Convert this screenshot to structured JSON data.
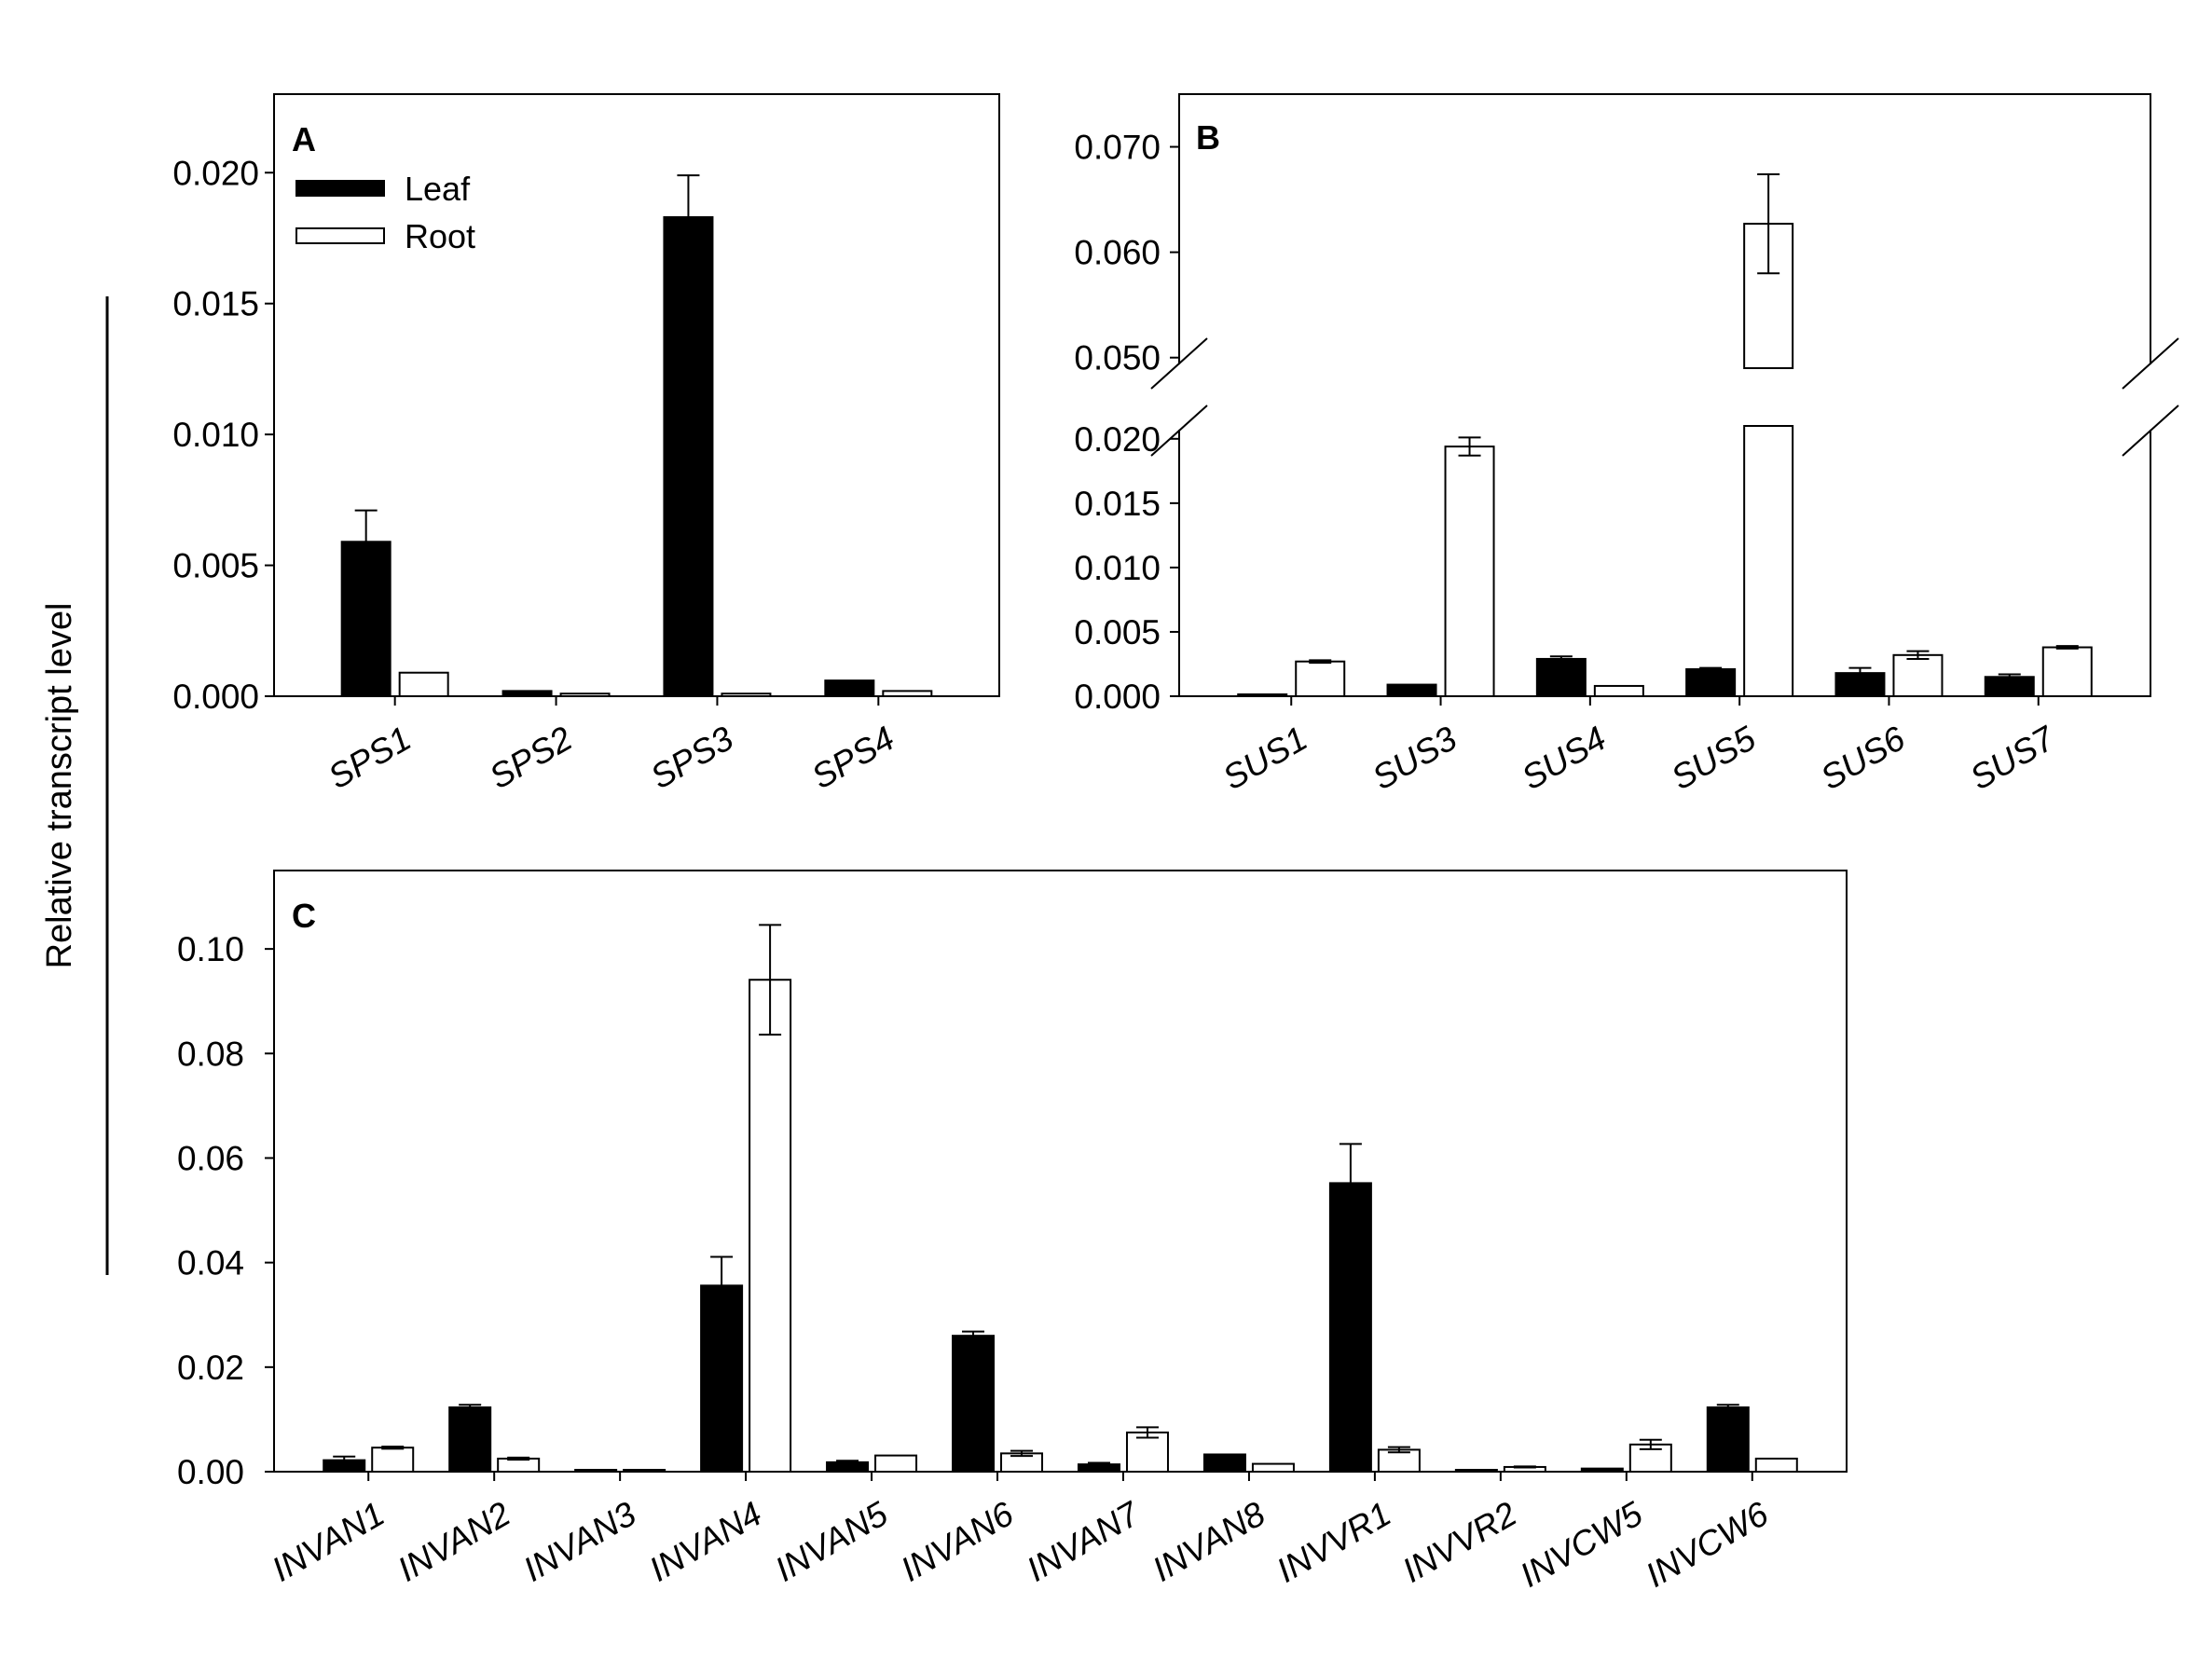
{
  "figure": {
    "ylabel": "Relative transcript level",
    "legend": [
      {
        "label": "Leaf",
        "color": "#000000"
      },
      {
        "label": "Root",
        "color": "#ffffff"
      }
    ]
  },
  "chart_data": [
    {
      "type": "bar",
      "panel": "A",
      "categories": [
        "SPS1",
        "SPS2",
        "SPS3",
        "SPS4"
      ],
      "series": [
        {
          "name": "Leaf",
          "values": [
            0.0059,
            0.0002,
            0.0183,
            0.0006
          ],
          "errors": [
            0.0012,
            0.0,
            0.0016,
            0.0
          ]
        },
        {
          "name": "Root",
          "values": [
            0.0009,
            0.0001,
            0.0001,
            0.0002
          ],
          "errors": [
            0.0,
            0.0,
            0.0,
            0.0
          ]
        }
      ],
      "ylim": [
        0,
        0.023
      ],
      "yticks": [
        "0.000",
        "0.005",
        "0.010",
        "0.015",
        "0.020"
      ],
      "legend_position": "top-left",
      "grid": false
    },
    {
      "type": "bar",
      "panel": "B",
      "categories": [
        "SUS1",
        "SUS3",
        "SUS4",
        "SUS5",
        "SUS6",
        "SUS7"
      ],
      "series": [
        {
          "name": "Leaf",
          "values": [
            0.0001,
            0.0009,
            0.0029,
            0.0021,
            0.0018,
            0.0015
          ],
          "errors": [
            0.0,
            0.0,
            0.0002,
            0.0001,
            0.0004,
            0.0002
          ]
        },
        {
          "name": "Root",
          "values": [
            0.0027,
            0.0194,
            0.0008,
            0.0627,
            0.0032,
            0.0038
          ],
          "errors": [
            0.0001,
            0.0007,
            0.0,
            0.0047,
            0.0003,
            0.0001
          ]
        }
      ],
      "ylim": [
        0,
        0.075
      ],
      "axis_break": [
        0.021,
        0.049
      ],
      "yticks": [
        "0.000",
        "0.005",
        "0.010",
        "0.015",
        "0.020",
        "0.050",
        "0.060",
        "0.070"
      ],
      "grid": false
    },
    {
      "type": "bar",
      "panel": "C",
      "categories": [
        "INVAN1",
        "INVAN2",
        "INVAN3",
        "INVAN4",
        "INVAN5",
        "INVAN6",
        "INVAN7",
        "INVAN8",
        "INVVR1",
        "INVVR2",
        "INVCW5",
        "INVCW6"
      ],
      "series": [
        {
          "name": "Leaf",
          "values": [
            0.0022,
            0.0123,
            0.0001,
            0.0356,
            0.0018,
            0.026,
            0.0014,
            0.0033,
            0.0552,
            0.0001,
            0.0006,
            0.0123
          ],
          "errors": [
            0.0007,
            0.0005,
            0.0,
            0.0055,
            0.0003,
            0.0008,
            0.0003,
            0.0,
            0.0075,
            0.0,
            0.0,
            0.0005
          ]
        },
        {
          "name": "Root",
          "values": [
            0.0046,
            0.0025,
            0.0,
            0.0941,
            0.0031,
            0.0035,
            0.0075,
            0.0015,
            0.0042,
            0.0009,
            0.0052,
            0.0025
          ],
          "errors": [
            0.0002,
            0.0002,
            0.0,
            0.0105,
            0.0,
            0.0005,
            0.001,
            0.0,
            0.0005,
            0.0001,
            0.0009,
            0.0
          ]
        }
      ],
      "ylim": [
        0,
        0.115
      ],
      "yticks": [
        "0.00",
        "0.02",
        "0.04",
        "0.06",
        "0.08",
        "0.10"
      ],
      "grid": false
    }
  ]
}
